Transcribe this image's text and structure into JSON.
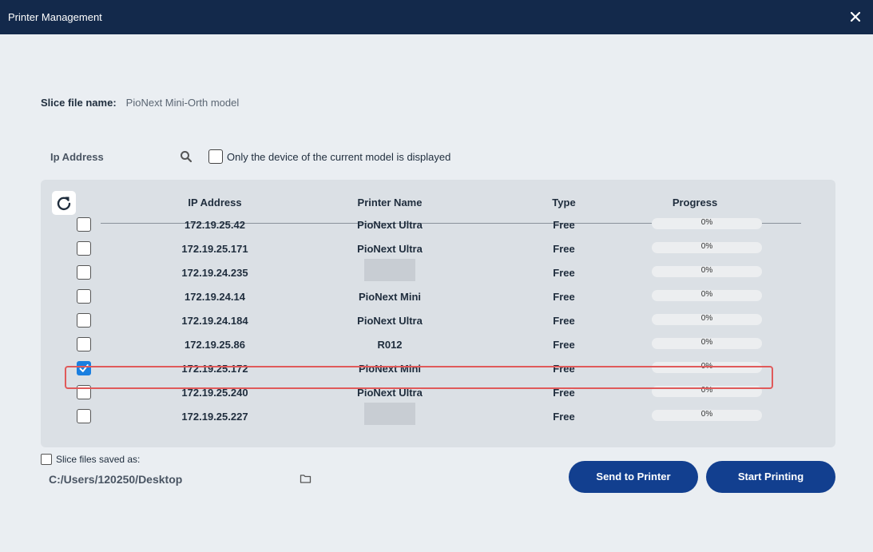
{
  "window": {
    "title": "Printer Management"
  },
  "slice": {
    "label": "Slice file name:",
    "value": "PioNext Mini-Orth model"
  },
  "filter": {
    "ip_label": "Ip Address",
    "only_current_label": "Only the device of the current model is displayed",
    "only_current_checked": false
  },
  "table": {
    "headers": {
      "ip": "IP Address",
      "name": "Printer Name",
      "type": "Type",
      "progress": "Progress"
    },
    "rows": [
      {
        "ip": "172.19.25.42",
        "name": "PioNext Ultra",
        "type": "Free",
        "progress": "0%",
        "progress_value": 0,
        "checked": false,
        "name_redacted": false
      },
      {
        "ip": "172.19.25.171",
        "name": "PioNext Ultra",
        "type": "Free",
        "progress": "0%",
        "progress_value": 0,
        "checked": false,
        "name_redacted": false
      },
      {
        "ip": "172.19.24.235",
        "name": "",
        "type": "Free",
        "progress": "0%",
        "progress_value": 0,
        "checked": false,
        "name_redacted": true
      },
      {
        "ip": "172.19.24.14",
        "name": "PioNext Mini",
        "type": "Free",
        "progress": "0%",
        "progress_value": 0,
        "checked": false,
        "name_redacted": false
      },
      {
        "ip": "172.19.24.184",
        "name": "PioNext Ultra",
        "type": "Free",
        "progress": "0%",
        "progress_value": 0,
        "checked": false,
        "name_redacted": false
      },
      {
        "ip": "172.19.25.86",
        "name": "R012",
        "type": "Free",
        "progress": "0%",
        "progress_value": 0,
        "checked": false,
        "name_redacted": false
      },
      {
        "ip": "172.19.25.172",
        "name": "PioNext Mini",
        "type": "Free",
        "progress": "0%",
        "progress_value": 0,
        "checked": true,
        "name_redacted": false
      },
      {
        "ip": "172.19.25.240",
        "name": "PioNext Ultra",
        "type": "Free",
        "progress": "0%",
        "progress_value": 0,
        "checked": false,
        "name_redacted": false
      },
      {
        "ip": "172.19.25.227",
        "name": "",
        "type": "Free",
        "progress": "0%",
        "progress_value": 0,
        "checked": false,
        "name_redacted": true
      }
    ]
  },
  "save": {
    "label": "Slice files saved as:",
    "checked": false,
    "path": "C:/Users/120250/Desktop"
  },
  "buttons": {
    "send": "Send to Printer",
    "start": "Start Printing"
  },
  "colors": {
    "titlebar": "#13294b",
    "primary_button": "#123f8f",
    "checkbox_checked": "#1a7fe0",
    "highlight": "#e05a5a"
  },
  "icons": {
    "close": "close-icon",
    "search": "search-icon",
    "refresh": "refresh-icon",
    "folder": "folder-icon",
    "check": "check-icon"
  }
}
